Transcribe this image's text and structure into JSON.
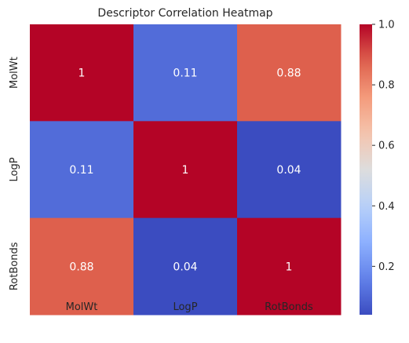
{
  "chart_data": {
    "type": "heatmap",
    "title": "Descriptor Correlation Heatmap",
    "x_categories": [
      "MolWt",
      "LogP",
      "RotBonds"
    ],
    "y_categories": [
      "MolWt",
      "LogP",
      "RotBonds"
    ],
    "values": [
      [
        1,
        0.11,
        0.88
      ],
      [
        0.11,
        1,
        0.04
      ],
      [
        0.88,
        0.04,
        1
      ]
    ],
    "cell_labels": [
      [
        "1",
        "0.11",
        "0.88"
      ],
      [
        "0.11",
        "1",
        "0.04"
      ],
      [
        "0.88",
        "0.04",
        "1"
      ]
    ],
    "colormap": "coolwarm",
    "color_range": [
      0.04,
      1
    ],
    "colorbar_ticks": [
      0.2,
      0.4,
      0.6,
      0.8,
      1.0
    ],
    "colorbar_tick_labels": [
      "0.2",
      "0.4",
      "0.6",
      "0.8",
      "1.0"
    ],
    "xlabel": "",
    "ylabel": "",
    "grid": false,
    "legend": "colorbar-right"
  }
}
